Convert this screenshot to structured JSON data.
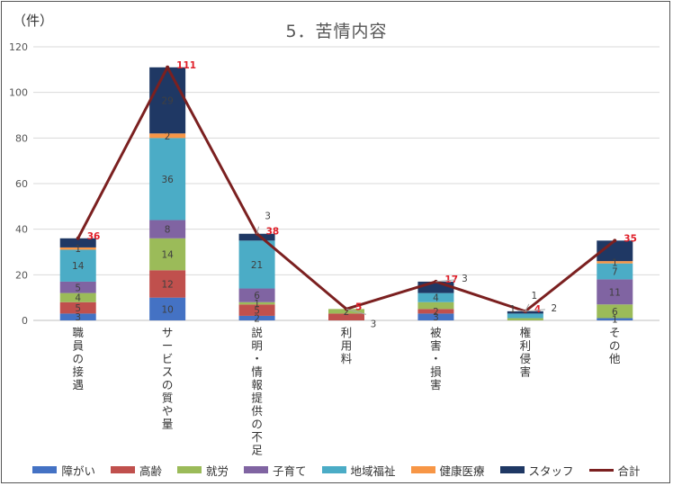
{
  "unit_label": "（件）",
  "chart_data": {
    "type": "bar",
    "title": "5．苦情内容",
    "stacked": true,
    "categories": [
      "職員の接遇",
      "サービスの質や量",
      "説明・情報提供の不足",
      "利用料",
      "被害・損害",
      "権利侵害",
      "その他"
    ],
    "ylim": [
      0,
      120
    ],
    "yticks": [
      0,
      20,
      40,
      60,
      80,
      100,
      120
    ],
    "grid": true,
    "legend_position": "bottom",
    "series": [
      {
        "name": "障がい",
        "color": "#4472c4",
        "values": [
          3,
          10,
          2,
          0,
          3,
          0,
          1
        ]
      },
      {
        "name": "高齢",
        "color": "#c0504d",
        "values": [
          5,
          12,
          5,
          3,
          2,
          0,
          0
        ]
      },
      {
        "name": "就労",
        "color": "#9bbb59",
        "values": [
          4,
          14,
          1,
          2,
          3,
          1,
          6
        ]
      },
      {
        "name": "子育て",
        "color": "#8064a2",
        "values": [
          5,
          8,
          6,
          0,
          0,
          0,
          11
        ]
      },
      {
        "name": "地域福祉",
        "color": "#4bacc6",
        "values": [
          14,
          36,
          21,
          0,
          4,
          2,
          7
        ]
      },
      {
        "name": "健康医療",
        "color": "#f79646",
        "values": [
          1,
          2,
          0,
          0,
          0,
          0,
          1
        ]
      },
      {
        "name": "スタッフ",
        "color": "#1f3864",
        "values": [
          4,
          29,
          3,
          0,
          5,
          1,
          9
        ]
      }
    ],
    "line": {
      "name": "合計",
      "color": "#7b2020",
      "values": [
        36,
        111,
        38,
        5,
        17,
        4,
        35
      ]
    },
    "segment_labels": [
      {
        "category": 0,
        "series": 0,
        "text": "3"
      },
      {
        "category": 0,
        "series": 1,
        "text": "5"
      },
      {
        "category": 0,
        "series": 2,
        "text": "4"
      },
      {
        "category": 0,
        "series": 3,
        "text": "5"
      },
      {
        "category": 0,
        "series": 4,
        "text": "14"
      },
      {
        "category": 0,
        "series": 5,
        "text": "1"
      },
      {
        "category": 1,
        "series": 0,
        "text": "10"
      },
      {
        "category": 1,
        "series": 1,
        "text": "12"
      },
      {
        "category": 1,
        "series": 2,
        "text": "14"
      },
      {
        "category": 1,
        "series": 3,
        "text": "8"
      },
      {
        "category": 1,
        "series": 4,
        "text": "36"
      },
      {
        "category": 1,
        "series": 5,
        "text": "2"
      },
      {
        "category": 1,
        "series": 6,
        "text": "29"
      },
      {
        "category": 2,
        "series": 0,
        "text": "2"
      },
      {
        "category": 2,
        "series": 1,
        "text": "5"
      },
      {
        "category": 2,
        "series": 2,
        "text": "1"
      },
      {
        "category": 2,
        "series": 3,
        "text": "6"
      },
      {
        "category": 2,
        "series": 4,
        "text": "21"
      },
      {
        "category": 3,
        "series": 2,
        "text": "2"
      },
      {
        "category": 4,
        "series": 0,
        "text": "3"
      },
      {
        "category": 4,
        "series": 1,
        "text": "2"
      },
      {
        "category": 4,
        "series": 4,
        "text": "4"
      },
      {
        "category": 6,
        "series": 0,
        "text": "1"
      },
      {
        "category": 6,
        "series": 2,
        "text": "6"
      },
      {
        "category": 6,
        "series": 3,
        "text": "11"
      },
      {
        "category": 6,
        "series": 4,
        "text": "7"
      },
      {
        "category": 6,
        "series": 5,
        "text": "1"
      }
    ],
    "callout_labels": [
      {
        "category": 2,
        "text": "3"
      },
      {
        "category": 3,
        "text": "3"
      },
      {
        "category": 4,
        "text": "3"
      },
      {
        "category": 5,
        "text": "1"
      },
      {
        "category": 5,
        "text": "1"
      },
      {
        "category": 5,
        "text": "2"
      }
    ]
  }
}
